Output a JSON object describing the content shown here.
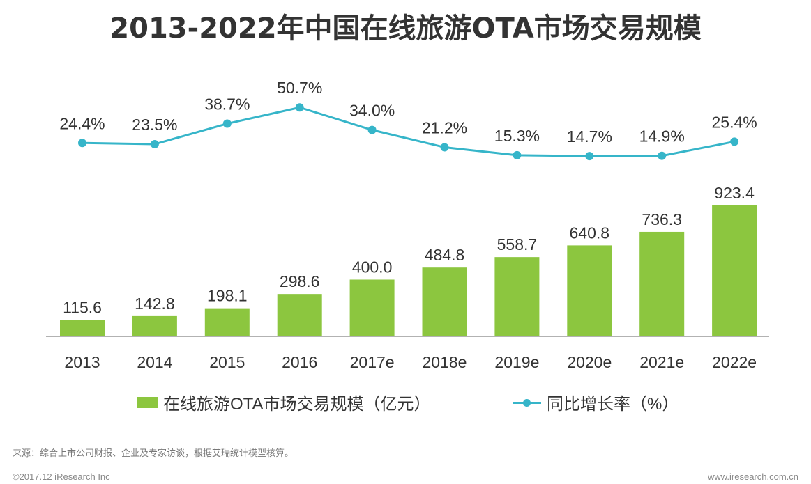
{
  "chart_data": {
    "type": "bar",
    "title": "2013-2022年中国在线旅游OTA市场交易规模",
    "categories": [
      "2013",
      "2014",
      "2015",
      "2016",
      "2017e",
      "2018e",
      "2019e",
      "2020e",
      "2021e",
      "2022e"
    ],
    "series": [
      {
        "name": "在线旅游OTA市场交易规模（亿元）",
        "type": "bar",
        "values": [
          115.6,
          142.8,
          198.1,
          298.6,
          400.0,
          484.8,
          558.7,
          640.8,
          736.3,
          923.4
        ],
        "labels": [
          "115.6",
          "142.8",
          "198.1",
          "298.6",
          "400.0",
          "484.8",
          "558.7",
          "640.8",
          "736.3",
          "923.4"
        ],
        "color": "#8cc63f"
      },
      {
        "name": "同比增长率（%）",
        "type": "line",
        "values": [
          24.4,
          23.5,
          38.7,
          50.7,
          34.0,
          21.2,
          15.3,
          14.7,
          14.9,
          25.4
        ],
        "labels": [
          "24.4%",
          "23.5%",
          "38.7%",
          "50.7%",
          "34.0%",
          "21.2%",
          "15.3%",
          "14.7%",
          "14.9%",
          "25.4%"
        ],
        "color": "#36b5c9"
      }
    ],
    "legend_position": "bottom",
    "grid": false
  },
  "legend": {
    "bar_label": "在线旅游OTA市场交易规模（亿元）",
    "line_label": "同比增长率（%）"
  },
  "source": "来源：综合上市公司财报、企业及专家访谈，根据艾瑞统计模型核算。",
  "footer": {
    "copyright": "©2017.12 iResearch Inc",
    "website": "www.iresearch.com.cn"
  }
}
